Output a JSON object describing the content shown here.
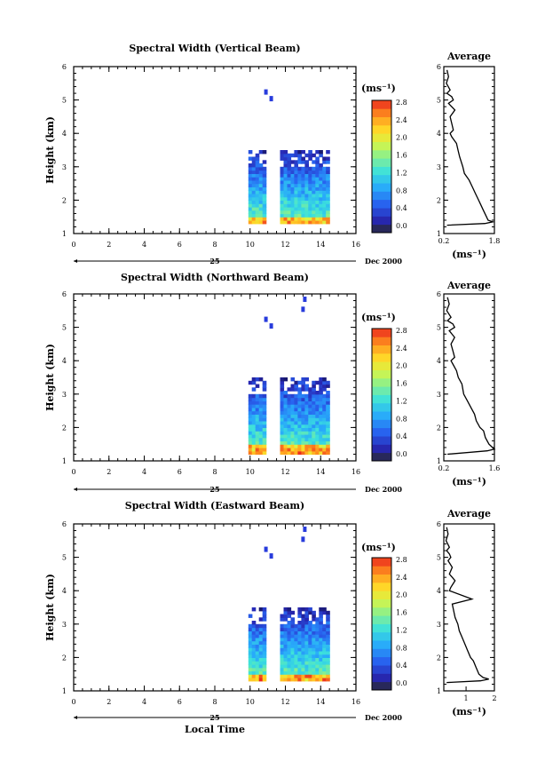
{
  "figure": {
    "xlabel": "Local Time",
    "date_day": "25",
    "date_month": "Dec 2000"
  },
  "chart_data": [
    {
      "type": "heatmap",
      "title": "Spectral Width (Vertical Beam)",
      "ylabel": "Height (km)",
      "xlim": [
        0,
        16
      ],
      "ylim": [
        1,
        6
      ],
      "xticks": [
        "0",
        "2",
        "4",
        "6",
        "8",
        "10",
        "12",
        "14",
        "16"
      ],
      "yticks": [
        "1",
        "2",
        "3",
        "4",
        "5",
        "6"
      ],
      "colorbar_unit": "(ms⁻¹)",
      "colorbar_ticks": [
        "0.0",
        "0.4",
        "0.8",
        "1.2",
        "1.6",
        "2.0",
        "2.4",
        "2.8"
      ],
      "colorbar_range": [
        0,
        3.0
      ],
      "data_region": {
        "x": [
          9.9,
          14.3
        ],
        "y": [
          1.3,
          3.5
        ],
        "gap_x": [
          10.8,
          11.6
        ]
      },
      "average_profile": {
        "title": "Average",
        "xlabel": "(ms⁻¹)",
        "xticks": [
          "0.2",
          "1.8"
        ],
        "xlim": [
          0.2,
          1.8
        ],
        "ylim": [
          1,
          6
        ],
        "x": [
          0.3,
          0.35,
          0.28,
          0.4,
          0.3,
          0.45,
          0.5,
          0.35,
          0.55,
          0.4,
          0.45,
          0.5,
          0.4,
          0.45,
          0.6,
          0.65,
          0.7,
          0.8,
          0.85,
          1.0,
          1.1,
          1.2,
          1.3,
          1.35,
          1.45,
          1.55,
          1.6,
          1.75,
          1.5,
          0.3
        ],
        "y": [
          5.9,
          5.7,
          5.5,
          5.3,
          5.2,
          5.1,
          5.0,
          4.9,
          4.7,
          4.5,
          4.3,
          4.1,
          4.0,
          3.9,
          3.7,
          3.5,
          3.3,
          3.0,
          2.8,
          2.6,
          2.4,
          2.2,
          2.0,
          1.9,
          1.7,
          1.5,
          1.4,
          1.35,
          1.3,
          1.25
        ]
      }
    },
    {
      "type": "heatmap",
      "title": "Spectral Width (Northward Beam)",
      "ylabel": "Height (km)",
      "xlim": [
        0,
        16
      ],
      "ylim": [
        1,
        6
      ],
      "xticks": [
        "0",
        "2",
        "4",
        "6",
        "8",
        "10",
        "12",
        "14",
        "16"
      ],
      "yticks": [
        "1",
        "2",
        "3",
        "4",
        "5",
        "6"
      ],
      "colorbar_unit": "(ms⁻¹)",
      "colorbar_ticks": [
        "0.0",
        "0.4",
        "0.8",
        "1.2",
        "1.6",
        "2.0",
        "2.4",
        "2.8"
      ],
      "colorbar_range": [
        0,
        3.0
      ],
      "data_region": {
        "x": [
          9.9,
          14.3
        ],
        "y": [
          1.2,
          3.5
        ],
        "gap_x": [
          10.8,
          11.6
        ]
      },
      "average_profile": {
        "title": "Average",
        "xlabel": "(ms⁻¹)",
        "xticks": [
          "0.2",
          "1.6"
        ],
        "xlim": [
          0.2,
          1.6
        ],
        "ylim": [
          1,
          6
        ],
        "x": [
          0.3,
          0.35,
          0.28,
          0.4,
          0.3,
          0.45,
          0.5,
          0.35,
          0.5,
          0.4,
          0.45,
          0.5,
          0.4,
          0.45,
          0.55,
          0.6,
          0.7,
          0.75,
          0.85,
          0.95,
          1.05,
          1.1,
          1.2,
          1.3,
          1.35,
          1.45,
          1.55,
          1.6,
          1.4,
          0.3
        ],
        "y": [
          5.9,
          5.7,
          5.5,
          5.3,
          5.2,
          5.1,
          5.0,
          4.9,
          4.7,
          4.5,
          4.3,
          4.1,
          4.0,
          3.9,
          3.7,
          3.5,
          3.3,
          3.0,
          2.8,
          2.6,
          2.4,
          2.2,
          2.0,
          1.9,
          1.7,
          1.5,
          1.4,
          1.35,
          1.3,
          1.2
        ]
      }
    },
    {
      "type": "heatmap",
      "title": "Spectral Width (Eastward Beam)",
      "ylabel": "Height (km)",
      "xlim": [
        0,
        16
      ],
      "ylim": [
        1,
        6
      ],
      "xticks": [
        "0",
        "2",
        "4",
        "6",
        "8",
        "10",
        "12",
        "14",
        "16"
      ],
      "yticks": [
        "1",
        "2",
        "3",
        "4",
        "5",
        "6"
      ],
      "colorbar_unit": "(ms⁻¹)",
      "colorbar_ticks": [
        "0.0",
        "0.4",
        "0.8",
        "1.2",
        "1.6",
        "2.0",
        "2.4",
        "2.8"
      ],
      "colorbar_range": [
        0,
        3.0
      ],
      "data_region": {
        "x": [
          9.9,
          14.3
        ],
        "y": [
          1.3,
          3.5
        ],
        "gap_x": [
          10.8,
          11.6
        ]
      },
      "average_profile": {
        "title": "Average",
        "xlabel": "(ms⁻¹)",
        "xticks": [
          "1",
          "2"
        ],
        "xlim": [
          0.2,
          2.0
        ],
        "ylim": [
          1,
          6
        ],
        "x": [
          0.3,
          0.35,
          0.28,
          0.4,
          0.3,
          0.4,
          0.45,
          0.35,
          0.5,
          0.4,
          0.6,
          0.45,
          0.4,
          1.2,
          0.5,
          0.55,
          0.6,
          0.7,
          0.75,
          0.85,
          0.95,
          1.05,
          1.15,
          1.25,
          1.35,
          1.45,
          1.6,
          1.8,
          1.5,
          0.3
        ],
        "y": [
          5.9,
          5.7,
          5.5,
          5.3,
          5.2,
          5.1,
          5.0,
          4.9,
          4.7,
          4.5,
          4.3,
          4.1,
          4.0,
          3.75,
          3.6,
          3.4,
          3.2,
          3.0,
          2.8,
          2.6,
          2.4,
          2.2,
          2.0,
          1.9,
          1.7,
          1.5,
          1.4,
          1.35,
          1.3,
          1.25
        ]
      }
    }
  ]
}
